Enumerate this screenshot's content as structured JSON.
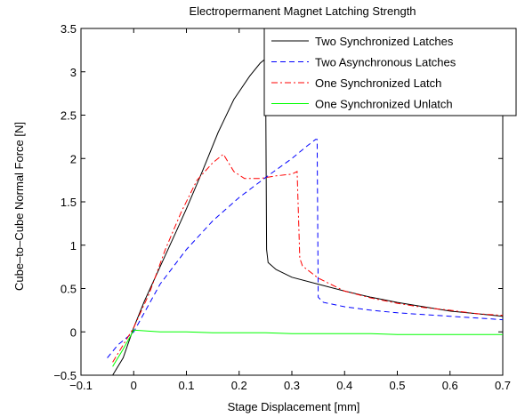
{
  "chart_data": {
    "type": "line",
    "title": "Electropermanent Magnet Latching Strength",
    "xlabel": "Stage Displacement [mm]",
    "ylabel": "Cube–to–Cube Normal Force [N]",
    "xlim": [
      -0.1,
      0.7
    ],
    "ylim": [
      -0.5,
      3.5
    ],
    "xticks": [
      "−0.1",
      "0",
      "0.1",
      "0.2",
      "0.3",
      "0.4",
      "0.5",
      "0.6",
      "0.7"
    ],
    "yticks": [
      "−0.5",
      "0",
      "0.5",
      "1",
      "1.5",
      "2",
      "2.5",
      "3",
      "3.5"
    ],
    "xtick_values": [
      -0.1,
      0,
      0.1,
      0.2,
      0.3,
      0.4,
      0.5,
      0.6,
      0.7
    ],
    "ytick_values": [
      -0.5,
      0,
      0.5,
      1,
      1.5,
      2,
      2.5,
      3,
      3.5
    ],
    "grid": false,
    "legend_position": "top-right",
    "series": [
      {
        "name": "Two Synchronized Latches",
        "color": "#000000",
        "dash": "solid",
        "points": [
          [
            -0.04,
            -0.5
          ],
          [
            -0.02,
            -0.3
          ],
          [
            0.0,
            0.05
          ],
          [
            0.02,
            0.35
          ],
          [
            0.05,
            0.75
          ],
          [
            0.08,
            1.15
          ],
          [
            0.1,
            1.42
          ],
          [
            0.13,
            1.85
          ],
          [
            0.16,
            2.3
          ],
          [
            0.19,
            2.68
          ],
          [
            0.22,
            2.95
          ],
          [
            0.24,
            3.1
          ],
          [
            0.25,
            3.15
          ],
          [
            0.252,
            0.95
          ],
          [
            0.255,
            0.8
          ],
          [
            0.27,
            0.72
          ],
          [
            0.3,
            0.63
          ],
          [
            0.35,
            0.55
          ],
          [
            0.4,
            0.47
          ],
          [
            0.45,
            0.4
          ],
          [
            0.5,
            0.34
          ],
          [
            0.55,
            0.29
          ],
          [
            0.6,
            0.24
          ],
          [
            0.65,
            0.21
          ],
          [
            0.7,
            0.18
          ]
        ]
      },
      {
        "name": "Two Asynchronous Latches",
        "color": "#0000ff",
        "dash": "dashed",
        "points": [
          [
            -0.05,
            -0.3
          ],
          [
            -0.03,
            -0.15
          ],
          [
            0.0,
            0.0
          ],
          [
            0.05,
            0.55
          ],
          [
            0.1,
            0.95
          ],
          [
            0.15,
            1.28
          ],
          [
            0.2,
            1.55
          ],
          [
            0.25,
            1.78
          ],
          [
            0.3,
            2.0
          ],
          [
            0.33,
            2.15
          ],
          [
            0.345,
            2.22
          ],
          [
            0.348,
            2.22
          ],
          [
            0.35,
            0.4
          ],
          [
            0.36,
            0.34
          ],
          [
            0.4,
            0.29
          ],
          [
            0.45,
            0.25
          ],
          [
            0.5,
            0.22
          ],
          [
            0.55,
            0.2
          ],
          [
            0.6,
            0.18
          ],
          [
            0.65,
            0.16
          ],
          [
            0.7,
            0.14
          ]
        ]
      },
      {
        "name": "One Synchronized Latch",
        "color": "#ff0000",
        "dash": "dashdot",
        "points": [
          [
            -0.04,
            -0.35
          ],
          [
            0.0,
            0.05
          ],
          [
            0.03,
            0.45
          ],
          [
            0.06,
            0.95
          ],
          [
            0.09,
            1.38
          ],
          [
            0.12,
            1.75
          ],
          [
            0.15,
            1.95
          ],
          [
            0.17,
            2.05
          ],
          [
            0.19,
            1.85
          ],
          [
            0.21,
            1.77
          ],
          [
            0.24,
            1.77
          ],
          [
            0.27,
            1.8
          ],
          [
            0.3,
            1.82
          ],
          [
            0.31,
            1.85
          ],
          [
            0.315,
            0.85
          ],
          [
            0.32,
            0.76
          ],
          [
            0.35,
            0.62
          ],
          [
            0.4,
            0.47
          ],
          [
            0.45,
            0.39
          ],
          [
            0.5,
            0.33
          ],
          [
            0.55,
            0.28
          ],
          [
            0.6,
            0.25
          ],
          [
            0.65,
            0.21
          ],
          [
            0.7,
            0.19
          ]
        ]
      },
      {
        "name": "One Synchronized Unlatch",
        "color": "#00ff00",
        "dash": "solid",
        "points": [
          [
            -0.04,
            -0.4
          ],
          [
            -0.02,
            -0.2
          ],
          [
            0.0,
            0.02
          ],
          [
            0.05,
            0.0
          ],
          [
            0.1,
            0.0
          ],
          [
            0.15,
            -0.01
          ],
          [
            0.2,
            -0.01
          ],
          [
            0.25,
            -0.01
          ],
          [
            0.3,
            -0.02
          ],
          [
            0.35,
            -0.02
          ],
          [
            0.4,
            -0.02
          ],
          [
            0.45,
            -0.02
          ],
          [
            0.5,
            -0.03
          ],
          [
            0.55,
            -0.03
          ],
          [
            0.6,
            -0.03
          ],
          [
            0.65,
            -0.03
          ],
          [
            0.7,
            -0.03
          ]
        ]
      }
    ]
  }
}
